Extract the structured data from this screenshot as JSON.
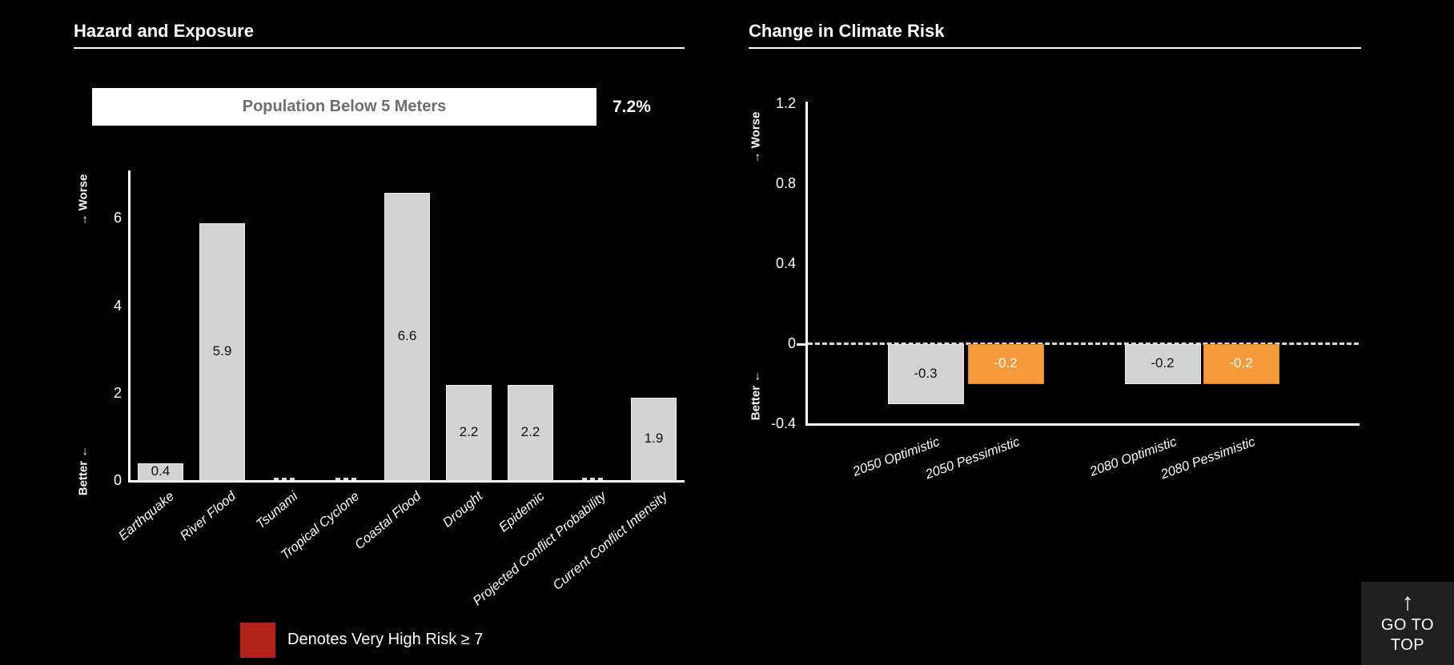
{
  "left_panel": {
    "title": "Hazard and Exposure",
    "population_card": {
      "label": "Population Below 5 Meters",
      "value": "7.2%"
    },
    "legend": {
      "swatch_color": "#b2231a",
      "label": "Denotes Very High Risk ≥ 7"
    }
  },
  "right_panel": {
    "title": "Change in Climate Risk"
  },
  "go_to_top": {
    "icon": "up-arrow-icon",
    "arrow": "↑",
    "line1": "GO TO",
    "line2": "TOP"
  },
  "chart_data": [
    {
      "id": "hazard-and-exposure",
      "type": "bar",
      "title": "Hazard and Exposure",
      "categories": [
        "Earthquake",
        "River Flood",
        "Tsunami",
        "Tropical Cyclone",
        "Coastal Flood",
        "Drought",
        "Epidemic",
        "Projected Conflict Probability",
        "Current Conflict Intensity"
      ],
      "values": [
        0.4,
        5.9,
        0,
        0,
        6.6,
        2.2,
        2.2,
        0,
        1.9
      ],
      "zero_value_style": "dashed-stub",
      "ytick_labels": [
        "0",
        "2",
        "4",
        "6"
      ],
      "yticks": [
        0,
        2,
        4,
        6
      ],
      "ylim": [
        0,
        7.1
      ],
      "ylabel_top": "→ Worse",
      "ylabel_bottom": "Better ←",
      "bar_color": "#d3d3d3",
      "bar_border_color": "#ececec",
      "value_label_color": "#111111",
      "grid": false,
      "note": "Denotes Very High Risk ≥ 7 shown in red (no bar reaches threshold)"
    },
    {
      "id": "change-in-climate-risk",
      "type": "bar",
      "title": "Change in Climate Risk",
      "categories": [
        "2050 Optimistic",
        "2050 Pessimistic",
        "2080 Optimistic",
        "2080 Pessimistic"
      ],
      "values": [
        -0.3,
        -0.2,
        -0.2,
        -0.2
      ],
      "bar_colors": [
        "#d3d3d3",
        "#f59a3d",
        "#d3d3d3",
        "#f59a3d"
      ],
      "bar_border_colors": [
        "#ececec",
        "#dd8226",
        "#ececec",
        "#dd8226"
      ],
      "value_label_colors": [
        "#111111",
        "#ffffff",
        "#111111",
        "#ffffff"
      ],
      "ytick_labels": [
        "1.2",
        "0.8",
        "0.4",
        "0",
        "-0.4"
      ],
      "yticks": [
        1.2,
        0.8,
        0.4,
        0,
        -0.4
      ],
      "ylim": [
        -0.4,
        1.2
      ],
      "zero_line": "dashed",
      "ylabel_top": "→ Worse",
      "ylabel_bottom": "Better ←",
      "grid": false
    }
  ]
}
